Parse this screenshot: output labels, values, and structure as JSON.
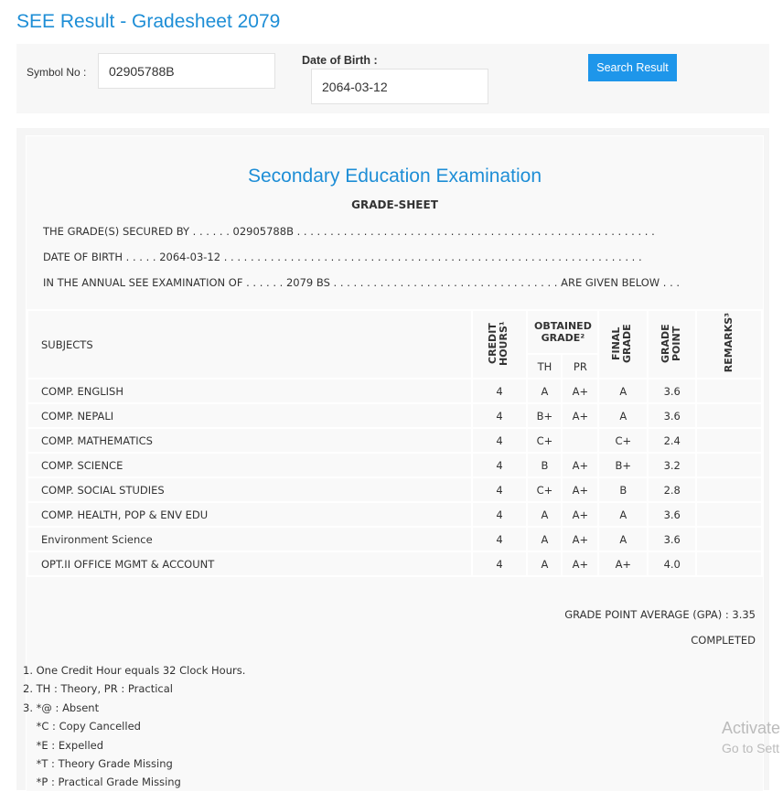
{
  "page_title": "SEE Result - Gradesheet 2079",
  "search": {
    "symbol_label": "Symbol No :",
    "symbol_value": "02905788B",
    "dob_label": "Date of Birth :",
    "dob_value": "2064-03-12",
    "button": "Search Result"
  },
  "sheet": {
    "heading": "Secondary Education Examination",
    "subheading": "GRADE-SHEET",
    "line1": "THE GRADE(S) SECURED BY . . . . . . 02905788B . . . . . . . . . . . . . . . . . . . . . . . . . . . . . . . . . . . . . . . . . . . . . . . . . . . . . .",
    "line2": "DATE OF BIRTH . . . . . 2064-03-12 . . . . . . . . . . . . . . . . . . . . . . . . . . . . . . . . . . . . . . . . . . . . . . . . . . . . . . . . . . . . . . .",
    "line3": "IN THE ANNUAL SEE EXAMINATION OF . . . . . . 2079 BS . . . . . . . . . . . . . . . . . . . . . . . . . . . . . . . . . . ARE GIVEN BELOW . . .",
    "headers": {
      "subjects": "SUBJECTS",
      "credit": "CREDIT HOURS¹",
      "obtained": "OBTAINED GRADE²",
      "th": "TH",
      "pr": "PR",
      "final": "FINAL GRADE",
      "gp": "GRADE POINT",
      "remarks": "REMARKS³"
    },
    "rows": [
      [
        "COMP. ENGLISH",
        "4",
        "A",
        "A+",
        "A",
        "3.6",
        ""
      ],
      [
        "COMP. NEPALI",
        "4",
        "B+",
        "A+",
        "A",
        "3.6",
        ""
      ],
      [
        "COMP. MATHEMATICS",
        "4",
        "C+",
        "",
        "C+",
        "2.4",
        ""
      ],
      [
        "COMP. SCIENCE",
        "4",
        "B",
        "A+",
        "B+",
        "3.2",
        ""
      ],
      [
        "COMP. SOCIAL STUDIES",
        "4",
        "C+",
        "A+",
        "B",
        "2.8",
        ""
      ],
      [
        "COMP. HEALTH, POP & ENV EDU",
        "4",
        "A",
        "A+",
        "A",
        "3.6",
        ""
      ],
      [
        "Environment Science",
        "4",
        "A",
        "A+",
        "A",
        "3.6",
        ""
      ],
      [
        "OPT.II OFFICE MGMT & ACCOUNT",
        "4",
        "A",
        "A+",
        "A+",
        "4.0",
        ""
      ]
    ],
    "gpa": "GRADE POINT AVERAGE (GPA) : 3.35",
    "status": "COMPLETED",
    "notes": [
      "1. One Credit Hour equals 32 Clock Hours.",
      "2. TH : Theory, PR : Practical",
      "3. *@ : Absent",
      "    *C : Copy Cancelled",
      "    *E : Expelled",
      "    *T : Theory Grade Missing",
      "    *P : Practical Grade Missing"
    ]
  },
  "watermark": {
    "line1": "Activate",
    "line2": "Go to Sett"
  }
}
